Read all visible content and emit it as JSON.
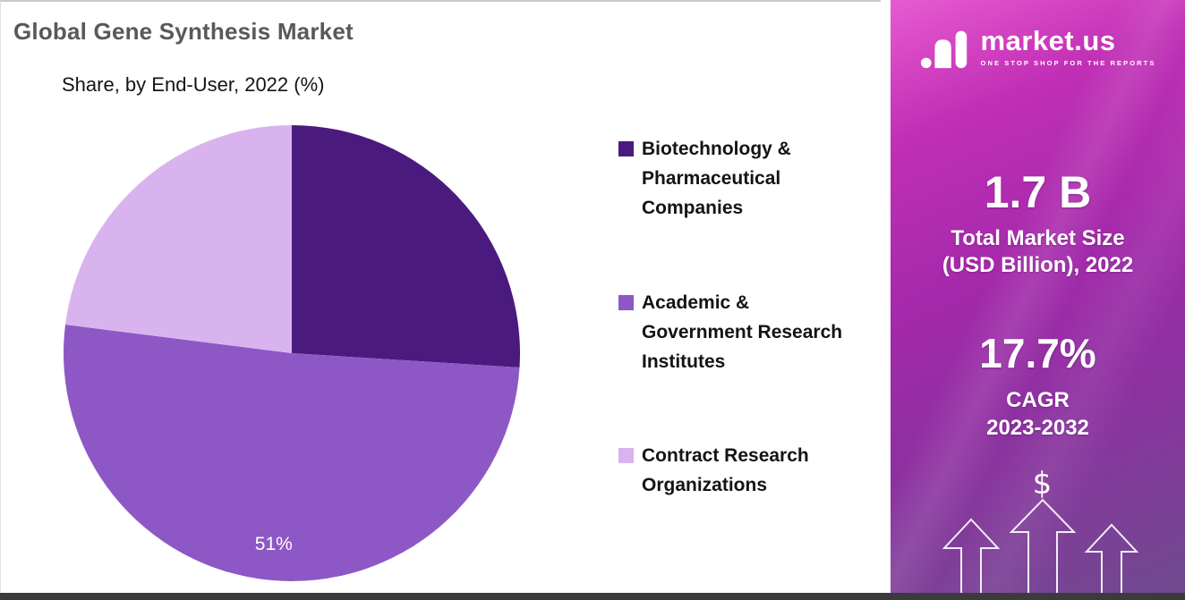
{
  "header": {
    "title": "Global Gene Synthesis Market",
    "subtitle": "Share, by End-User, 2022 (%)"
  },
  "chart_data": {
    "type": "pie",
    "title": "Global Gene Synthesis Market",
    "subtitle": "Share, by End-User, 2022 (%)",
    "direction": "clockwise",
    "start_angle_deg": 0,
    "legend_position": "right",
    "slices": [
      {
        "label": "Biotechnology &\nPharmaceutical\nCompanies",
        "value": 26,
        "color": "#4b1a7e",
        "data_label": ""
      },
      {
        "label": "Academic &\nGovernment Research\nInstitutes",
        "value": 51,
        "color": "#8d58c5",
        "data_label": "51%"
      },
      {
        "label": "Contract Research\nOrganizations",
        "value": 23,
        "color": "#d9b3ee",
        "data_label": ""
      }
    ],
    "data_label_color": "#ffffff"
  },
  "panel": {
    "logo_name": "market.us",
    "logo_tagline": "ONE STOP SHOP FOR THE REPORTS",
    "stat1_value": "1.7 B",
    "stat1_label": "Total Market Size\n(USD Billion), 2022",
    "stat2_value": "17.7%",
    "stat2_label": "CAGR\n2023-2032",
    "dollar_symbol": "$"
  }
}
